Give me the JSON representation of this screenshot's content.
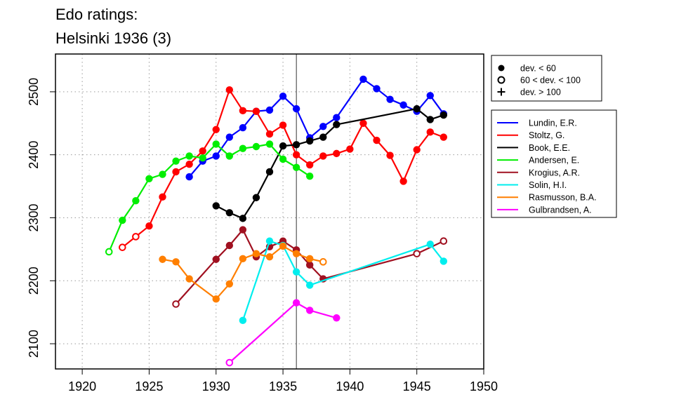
{
  "chart_data": {
    "type": "line",
    "title_lines": [
      "Edo ratings:",
      "Helsinki 1936 (3)"
    ],
    "xlabel": "",
    "ylabel": "",
    "xlim": [
      1918,
      1950
    ],
    "ylim": [
      2060,
      2560
    ],
    "x_ticks": [
      1920,
      1925,
      1930,
      1935,
      1940,
      1945,
      1950
    ],
    "y_ticks": [
      2100,
      2200,
      2300,
      2400,
      2500
    ],
    "grid": true,
    "event_marker_x": 1936,
    "symbol_legend": [
      {
        "symbol": "filled-circle",
        "label": "dev. < 60"
      },
      {
        "symbol": "open-circle",
        "label": "60 < dev. < 100"
      },
      {
        "symbol": "plus",
        "label": "dev. > 100"
      }
    ],
    "series": [
      {
        "name": "Lundin, E.R.",
        "color": "#0000ff",
        "points": [
          {
            "x": 1928,
            "y": 2365,
            "m": "f"
          },
          {
            "x": 1929,
            "y": 2390,
            "m": "f"
          },
          {
            "x": 1930,
            "y": 2398,
            "m": "f"
          },
          {
            "x": 1931,
            "y": 2428,
            "m": "f"
          },
          {
            "x": 1932,
            "y": 2443,
            "m": "f"
          },
          {
            "x": 1933,
            "y": 2469,
            "m": "f"
          },
          {
            "x": 1934,
            "y": 2471,
            "m": "f"
          },
          {
            "x": 1935,
            "y": 2493,
            "m": "f"
          },
          {
            "x": 1936,
            "y": 2473,
            "m": "f"
          },
          {
            "x": 1937,
            "y": 2427,
            "m": "f"
          },
          {
            "x": 1938,
            "y": 2445,
            "m": "f"
          },
          {
            "x": 1939,
            "y": 2459,
            "m": "f"
          },
          {
            "x": 1941,
            "y": 2520,
            "m": "f"
          },
          {
            "x": 1942,
            "y": 2505,
            "m": "f"
          },
          {
            "x": 1943,
            "y": 2488,
            "m": "f"
          },
          {
            "x": 1944,
            "y": 2479,
            "m": "f"
          },
          {
            "x": 1945,
            "y": 2469,
            "m": "f"
          },
          {
            "x": 1946,
            "y": 2494,
            "m": "f"
          },
          {
            "x": 1947,
            "y": 2465,
            "m": "f"
          }
        ]
      },
      {
        "name": "Stoltz, G.",
        "color": "#ff0000",
        "points": [
          {
            "x": 1923,
            "y": 2253,
            "m": "o"
          },
          {
            "x": 1924,
            "y": 2270,
            "m": "o"
          },
          {
            "x": 1925,
            "y": 2287,
            "m": "f"
          },
          {
            "x": 1926,
            "y": 2333,
            "m": "f"
          },
          {
            "x": 1927,
            "y": 2373,
            "m": "f"
          },
          {
            "x": 1928,
            "y": 2385,
            "m": "f"
          },
          {
            "x": 1929,
            "y": 2406,
            "m": "f"
          },
          {
            "x": 1930,
            "y": 2440,
            "m": "f"
          },
          {
            "x": 1931,
            "y": 2503,
            "m": "f"
          },
          {
            "x": 1932,
            "y": 2470,
            "m": "f"
          },
          {
            "x": 1933,
            "y": 2469,
            "m": "f"
          },
          {
            "x": 1934,
            "y": 2433,
            "m": "f"
          },
          {
            "x": 1935,
            "y": 2447,
            "m": "f"
          },
          {
            "x": 1936,
            "y": 2400,
            "m": "f"
          },
          {
            "x": 1937,
            "y": 2384,
            "m": "f"
          },
          {
            "x": 1938,
            "y": 2398,
            "m": "f"
          },
          {
            "x": 1939,
            "y": 2402,
            "m": "f"
          },
          {
            "x": 1940,
            "y": 2409,
            "m": "f"
          },
          {
            "x": 1941,
            "y": 2450,
            "m": "f"
          },
          {
            "x": 1942,
            "y": 2423,
            "m": "f"
          },
          {
            "x": 1943,
            "y": 2399,
            "m": "f"
          },
          {
            "x": 1944,
            "y": 2358,
            "m": "f"
          },
          {
            "x": 1945,
            "y": 2408,
            "m": "f"
          },
          {
            "x": 1946,
            "y": 2436,
            "m": "f"
          },
          {
            "x": 1947,
            "y": 2428,
            "m": "f"
          }
        ]
      },
      {
        "name": "Book, E.E.",
        "color": "#000000",
        "points": [
          {
            "x": 1930,
            "y": 2319,
            "m": "f"
          },
          {
            "x": 1931,
            "y": 2308,
            "m": "f"
          },
          {
            "x": 1932,
            "y": 2299,
            "m": "f"
          },
          {
            "x": 1933,
            "y": 2332,
            "m": "f"
          },
          {
            "x": 1934,
            "y": 2373,
            "m": "f"
          },
          {
            "x": 1935,
            "y": 2414,
            "m": "f"
          },
          {
            "x": 1936,
            "y": 2416,
            "m": "f"
          },
          {
            "x": 1937,
            "y": 2422,
            "m": "f"
          },
          {
            "x": 1938,
            "y": 2428,
            "m": "f"
          },
          {
            "x": 1939,
            "y": 2448,
            "m": "f"
          },
          {
            "x": 1945,
            "y": 2473,
            "m": "f"
          },
          {
            "x": 1946,
            "y": 2456,
            "m": "f"
          },
          {
            "x": 1947,
            "y": 2463,
            "m": "f"
          }
        ]
      },
      {
        "name": "Andersen, E.",
        "color": "#00ee00",
        "points": [
          {
            "x": 1922,
            "y": 2246,
            "m": "o"
          },
          {
            "x": 1923,
            "y": 2296,
            "m": "f"
          },
          {
            "x": 1924,
            "y": 2327,
            "m": "f"
          },
          {
            "x": 1925,
            "y": 2362,
            "m": "f"
          },
          {
            "x": 1926,
            "y": 2369,
            "m": "f"
          },
          {
            "x": 1927,
            "y": 2390,
            "m": "f"
          },
          {
            "x": 1928,
            "y": 2398,
            "m": "f"
          },
          {
            "x": 1929,
            "y": 2395,
            "m": "f"
          },
          {
            "x": 1930,
            "y": 2417,
            "m": "f"
          },
          {
            "x": 1931,
            "y": 2398,
            "m": "f"
          },
          {
            "x": 1932,
            "y": 2410,
            "m": "f"
          },
          {
            "x": 1933,
            "y": 2413,
            "m": "f"
          },
          {
            "x": 1934,
            "y": 2417,
            "m": "f"
          },
          {
            "x": 1935,
            "y": 2393,
            "m": "f"
          },
          {
            "x": 1936,
            "y": 2380,
            "m": "f"
          },
          {
            "x": 1937,
            "y": 2366,
            "m": "f"
          }
        ]
      },
      {
        "name": "Krogius, A.R.",
        "color": "#a01020",
        "points": [
          {
            "x": 1927,
            "y": 2163,
            "m": "o"
          },
          {
            "x": 1930,
            "y": 2234,
            "m": "f"
          },
          {
            "x": 1931,
            "y": 2256,
            "m": "f"
          },
          {
            "x": 1932,
            "y": 2281,
            "m": "f"
          },
          {
            "x": 1933,
            "y": 2238,
            "m": "f"
          },
          {
            "x": 1934,
            "y": 2254,
            "m": "f"
          },
          {
            "x": 1935,
            "y": 2263,
            "m": "f"
          },
          {
            "x": 1936,
            "y": 2249,
            "m": "f"
          },
          {
            "x": 1937,
            "y": 2225,
            "m": "f"
          },
          {
            "x": 1938,
            "y": 2203,
            "m": "f"
          },
          {
            "x": 1945,
            "y": 2243,
            "m": "o"
          },
          {
            "x": 1947,
            "y": 2263,
            "m": "o"
          }
        ]
      },
      {
        "name": "Solin, H.I.",
        "color": "#00eeee",
        "points": [
          {
            "x": 1932,
            "y": 2137,
            "m": "f"
          },
          {
            "x": 1934,
            "y": 2263,
            "m": "f"
          },
          {
            "x": 1935,
            "y": 2256,
            "m": "f"
          },
          {
            "x": 1936,
            "y": 2214,
            "m": "f"
          },
          {
            "x": 1937,
            "y": 2193,
            "m": "f"
          },
          {
            "x": 1946,
            "y": 2258,
            "m": "f"
          },
          {
            "x": 1947,
            "y": 2231,
            "m": "f"
          }
        ]
      },
      {
        "name": "Rasmusson, B.A.",
        "color": "#ff7f00",
        "points": [
          {
            "x": 1926,
            "y": 2234,
            "m": "f"
          },
          {
            "x": 1927,
            "y": 2230,
            "m": "f"
          },
          {
            "x": 1928,
            "y": 2203,
            "m": "f"
          },
          {
            "x": 1930,
            "y": 2171,
            "m": "f"
          },
          {
            "x": 1931,
            "y": 2195,
            "m": "f"
          },
          {
            "x": 1932,
            "y": 2235,
            "m": "f"
          },
          {
            "x": 1933,
            "y": 2243,
            "m": "f"
          },
          {
            "x": 1934,
            "y": 2238,
            "m": "f"
          },
          {
            "x": 1935,
            "y": 2255,
            "m": "f"
          },
          {
            "x": 1936,
            "y": 2243,
            "m": "f"
          },
          {
            "x": 1937,
            "y": 2235,
            "m": "f"
          },
          {
            "x": 1938,
            "y": 2230,
            "m": "o"
          }
        ]
      },
      {
        "name": "Gulbrandsen, A.",
        "color": "#ff00ff",
        "points": [
          {
            "x": 1931,
            "y": 2070,
            "m": "o"
          },
          {
            "x": 1936,
            "y": 2165,
            "m": "f"
          },
          {
            "x": 1937,
            "y": 2153,
            "m": "f"
          },
          {
            "x": 1939,
            "y": 2141,
            "m": "f"
          }
        ]
      }
    ]
  }
}
